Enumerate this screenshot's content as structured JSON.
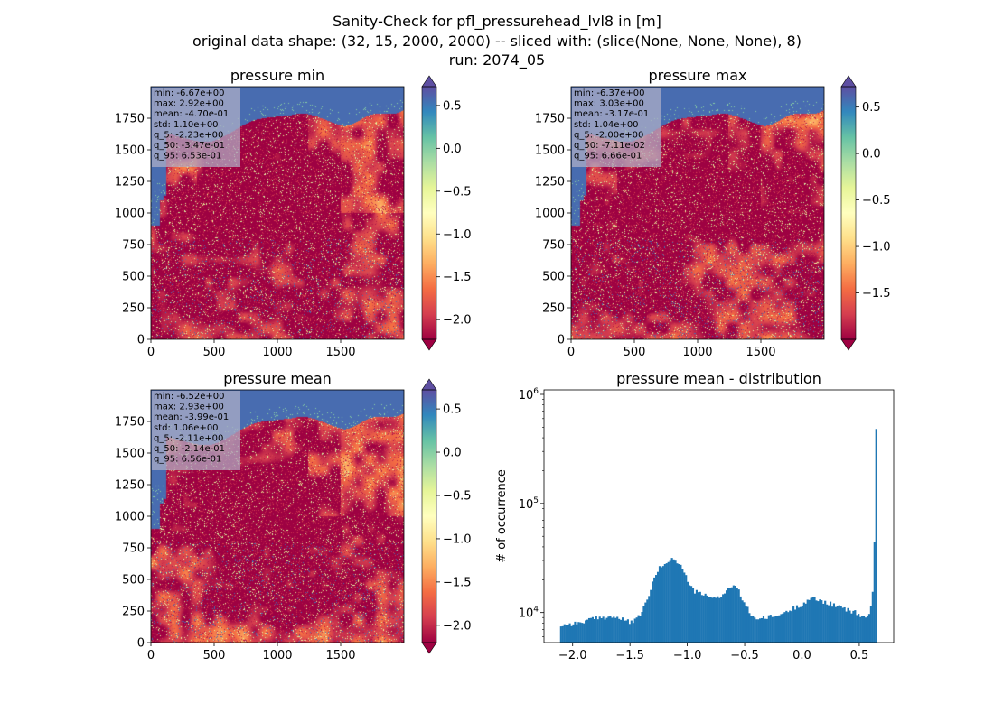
{
  "figure": {
    "suptitle_lines": [
      "Sanity-Check for pfl_pressurehead_lvl8 in [m]",
      "original data shape: (32, 15, 2000, 2000) -- sliced with: (slice(None, None, None), 8)",
      "run: 2074_05"
    ]
  },
  "colors": {
    "spectral_colormap": [
      "#9e0142",
      "#d53e4f",
      "#f46d43",
      "#fdae61",
      "#fee08b",
      "#ffffbf",
      "#e6f598",
      "#abdda4",
      "#66c2a5",
      "#3288bd",
      "#5e4fa2"
    ],
    "histogram_bar": "#1f77b4",
    "stats_box": "#b0b0c8"
  },
  "chart_data": [
    {
      "type": "heatmap",
      "title": "pressure min",
      "xlim": [
        0,
        2000
      ],
      "ylim": [
        0,
        2000
      ],
      "x_ticks": [
        0,
        500,
        1000,
        1500
      ],
      "y_ticks": [
        0,
        250,
        500,
        750,
        1000,
        1250,
        1500,
        1750
      ],
      "colorbar": {
        "min": -2.23,
        "max": 0.72,
        "ticks": [
          -2.0,
          -1.5,
          -1.0,
          -0.5,
          0.0,
          0.5
        ],
        "tick_labels": [
          "−2.0",
          "−1.5",
          "−1.0",
          "−0.5",
          "0.0",
          "0.5"
        ],
        "extend": "both"
      },
      "stats": [
        "min: -6.67e+00",
        "max: 2.92e+00",
        "mean: -4.70e-01",
        "std: 1.10e+00",
        "q_5: -2.23e+00",
        "q_50: -3.47e-01",
        "q_95: 6.53e-01"
      ]
    },
    {
      "type": "heatmap",
      "title": "pressure max",
      "xlim": [
        0,
        2000
      ],
      "ylim": [
        0,
        2000
      ],
      "x_ticks": [
        0,
        500,
        1000,
        1500
      ],
      "y_ticks": [
        0,
        250,
        500,
        750,
        1000,
        1250,
        1500,
        1750
      ],
      "colorbar": {
        "min": -2.0,
        "max": 0.72,
        "ticks": [
          -1.5,
          -1.0,
          -0.5,
          0.0,
          0.5
        ],
        "tick_labels": [
          "−1.5",
          "−1.0",
          "−0.5",
          "0.0",
          "0.5"
        ],
        "extend": "both"
      },
      "stats": [
        "min: -6.37e+00",
        "max: 3.03e+00",
        "mean: -3.17e-01",
        "std: 1.04e+00",
        "q_5: -2.00e+00",
        "q_50: -7.11e-02",
        "q_95: 6.66e-01"
      ]
    },
    {
      "type": "heatmap",
      "title": "pressure mean",
      "xlim": [
        0,
        2000
      ],
      "ylim": [
        0,
        2000
      ],
      "x_ticks": [
        0,
        500,
        1000,
        1500
      ],
      "y_ticks": [
        0,
        250,
        500,
        750,
        1000,
        1250,
        1500,
        1750
      ],
      "colorbar": {
        "min": -2.2,
        "max": 0.72,
        "ticks": [
          -2.0,
          -1.5,
          -1.0,
          -0.5,
          0.0,
          0.5
        ],
        "tick_labels": [
          "−2.0",
          "−1.5",
          "−1.0",
          "−0.5",
          "0.0",
          "0.5"
        ],
        "extend": "both"
      },
      "stats": [
        "min: -6.52e+00",
        "max: 2.93e+00",
        "mean: -3.99e-01",
        "std: 1.06e+00",
        "q_5: -2.11e+00",
        "q_50: -2.14e-01",
        "q_95: 6.56e-01"
      ]
    },
    {
      "type": "bar",
      "title": "pressure mean - distribution",
      "ylabel": "# of occurrence",
      "xlim": [
        -2.25,
        0.8
      ],
      "ylim": [
        5300,
        1100000
      ],
      "yscale": "log",
      "x_ticks": [
        -2.0,
        -1.5,
        -1.0,
        -0.5,
        0.0,
        0.5
      ],
      "x_tick_labels": [
        "−2.0",
        "−1.5",
        "−1.0",
        "−0.5",
        "0.0",
        "0.5"
      ],
      "y_ticks": [
        10000,
        100000,
        1000000
      ],
      "y_tick_labels": [
        "10^4",
        "10^5",
        "10^6"
      ],
      "histogram_anchors": {
        "x": [
          -2.11,
          -2.05,
          -1.95,
          -1.85,
          -1.75,
          -1.65,
          -1.55,
          -1.5,
          -1.45,
          -1.4,
          -1.35,
          -1.3,
          -1.25,
          -1.2,
          -1.15,
          -1.1,
          -1.05,
          -1.0,
          -0.95,
          -0.9,
          -0.85,
          -0.8,
          -0.75,
          -0.7,
          -0.65,
          -0.6,
          -0.55,
          -0.5,
          -0.45,
          -0.4,
          -0.35,
          -0.3,
          -0.2,
          -0.1,
          0.0,
          0.05,
          0.1,
          0.2,
          0.3,
          0.4,
          0.45,
          0.5,
          0.55,
          0.58,
          0.6,
          0.62,
          0.63,
          0.64,
          0.645,
          0.65
        ],
        "counts": [
          7600,
          7800,
          8000,
          8600,
          9000,
          9200,
          8500,
          8200,
          8400,
          10000,
          13000,
          19000,
          25000,
          28000,
          31000,
          30000,
          26000,
          20000,
          16000,
          15000,
          14500,
          13500,
          14000,
          14200,
          16000,
          18000,
          15500,
          12000,
          9800,
          8800,
          8800,
          9000,
          9500,
          10500,
          12000,
          13000,
          13500,
          12500,
          11500,
          10500,
          10200,
          9500,
          9000,
          9300,
          11500,
          17000,
          30000,
          180000,
          850000,
          240000
        ]
      }
    }
  ]
}
